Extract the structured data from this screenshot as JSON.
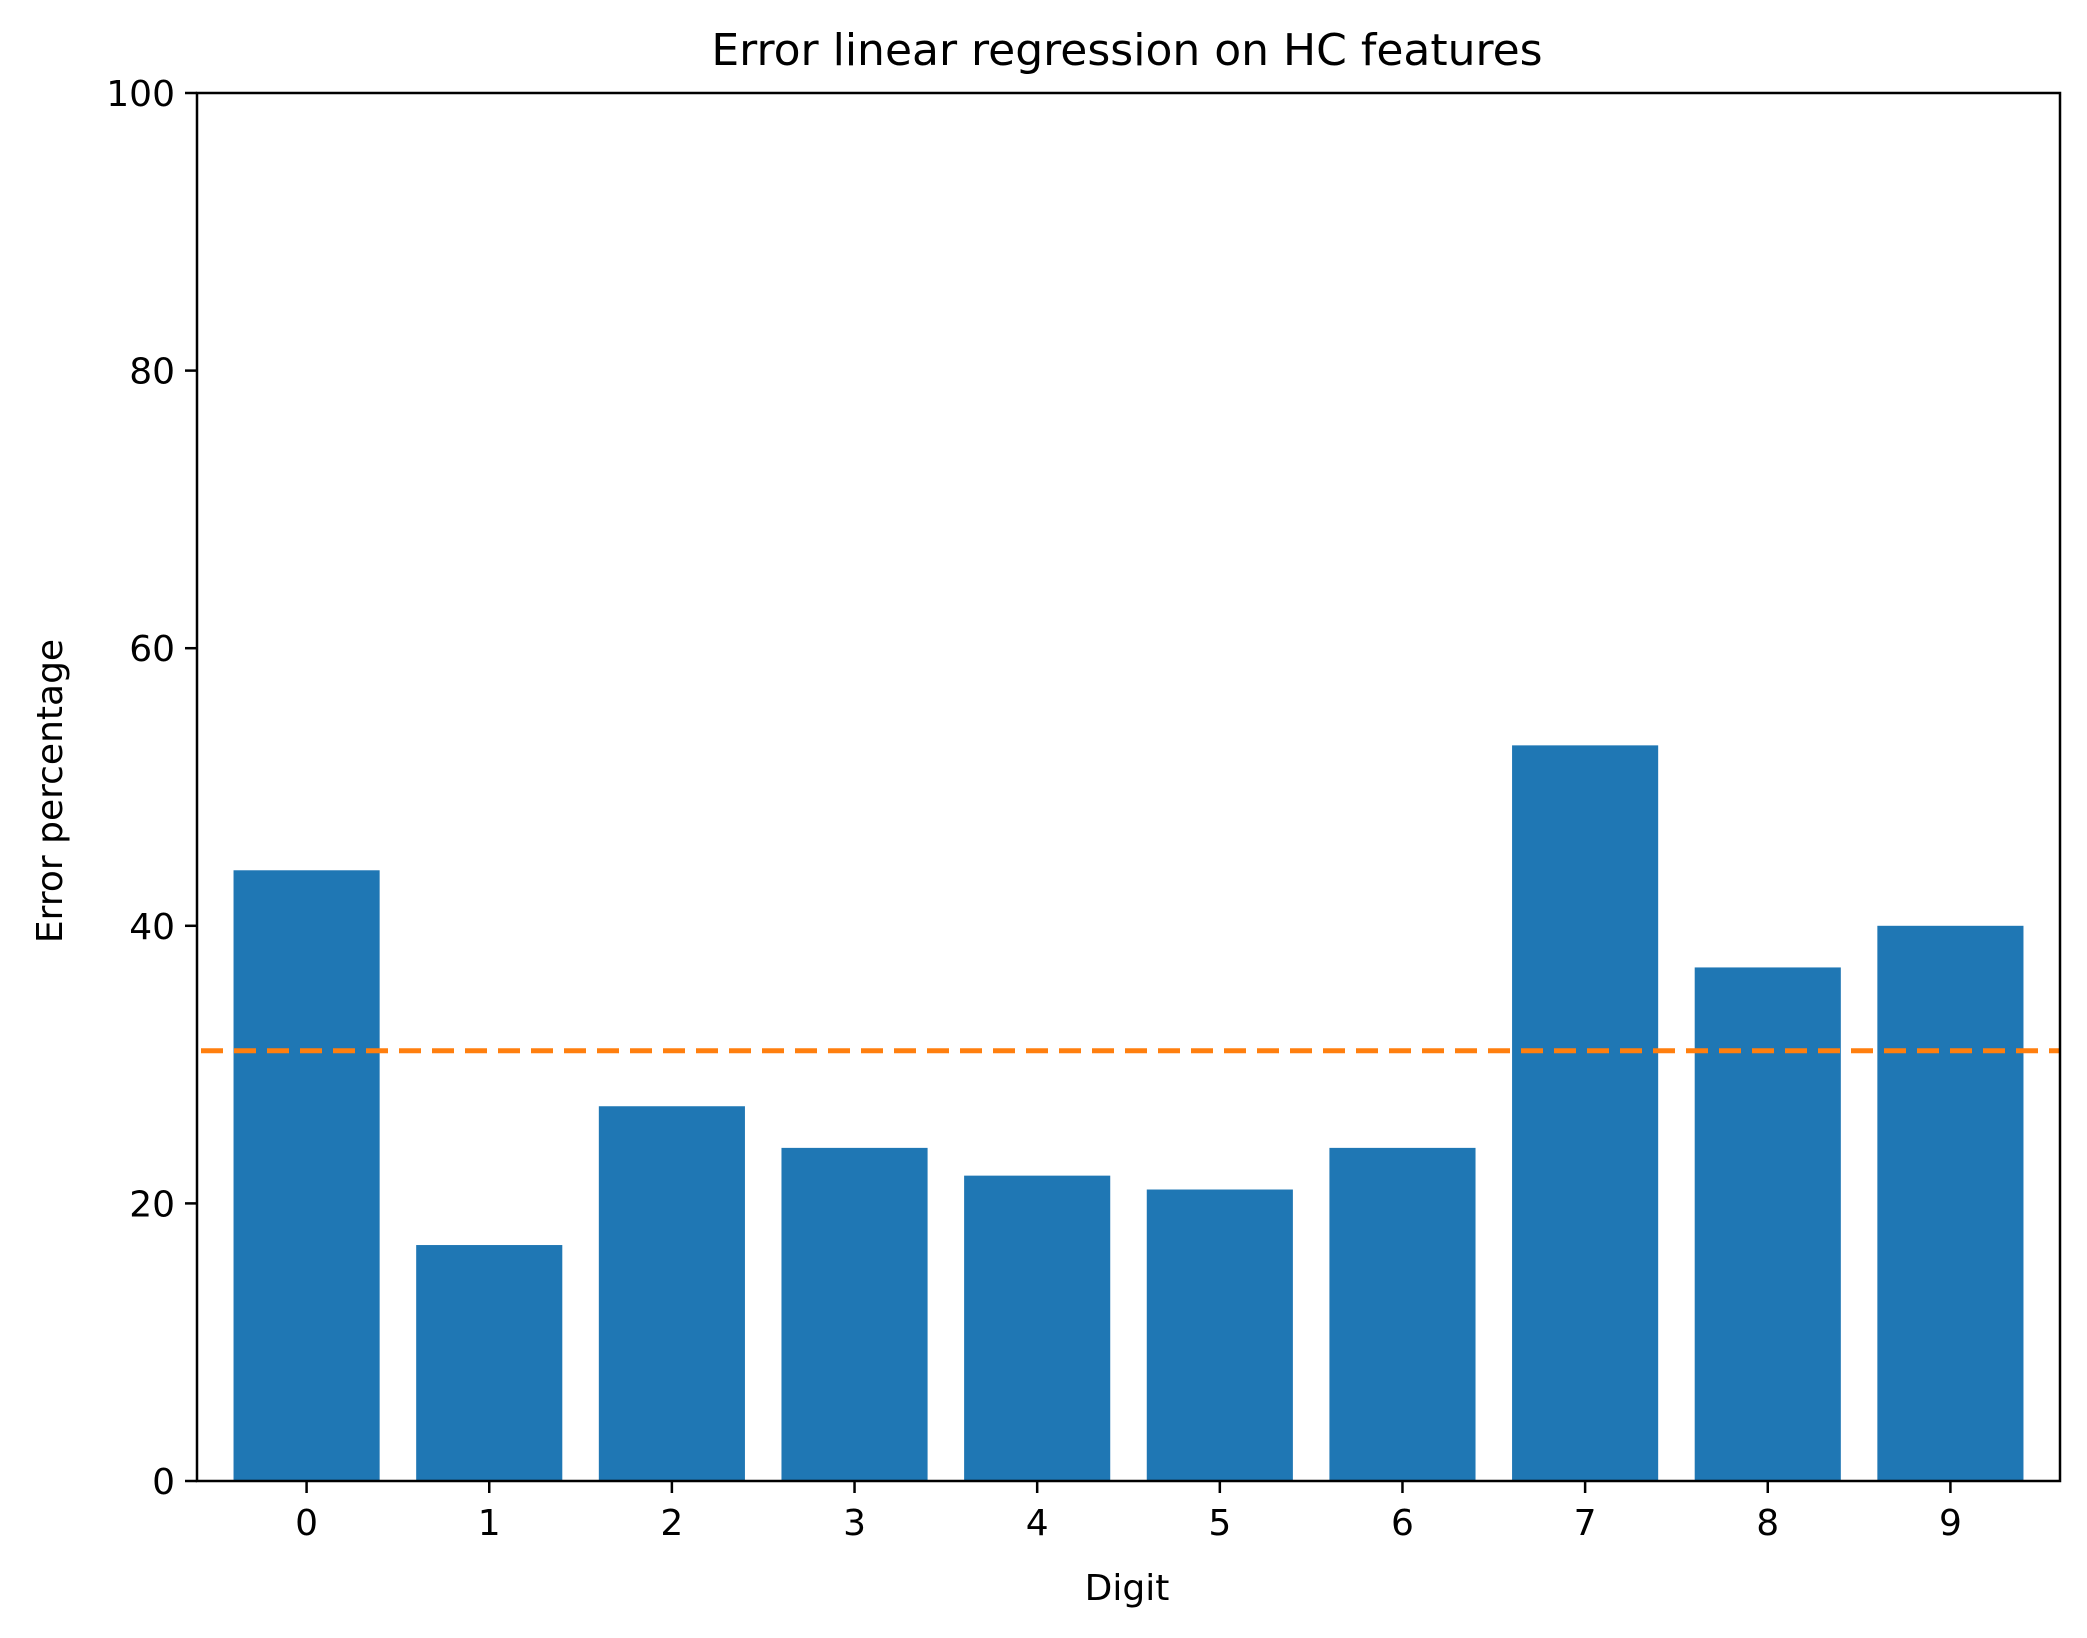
{
  "chart_data": {
    "type": "bar",
    "title": "Error linear regression on HC features",
    "xlabel": "Digit",
    "ylabel": "Error percentage",
    "categories": [
      "0",
      "1",
      "2",
      "3",
      "4",
      "5",
      "6",
      "7",
      "8",
      "9"
    ],
    "values": [
      44,
      17,
      27,
      24,
      22,
      21,
      24,
      53,
      37,
      40
    ],
    "ylim": [
      0,
      100
    ],
    "yticks": [
      "0",
      "20",
      "40",
      "60",
      "80",
      "100"
    ],
    "grid": false,
    "reference_line": {
      "value": 31,
      "style": "dashed",
      "color": "#ff7f0e"
    },
    "bar_color": "#1f77b4"
  }
}
